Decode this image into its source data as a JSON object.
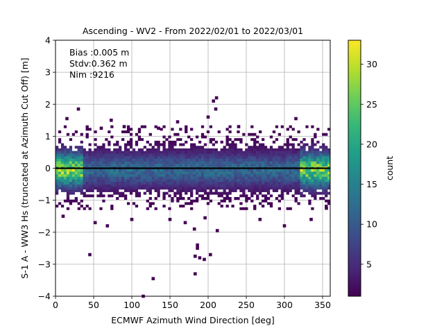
{
  "chart_data": {
    "type": "heatmap",
    "title": "Ascending - WV2 - From 2022/02/01 to 2022/03/01",
    "xlabel": "ECMWF Azimuth Wind Direction [deg]",
    "ylabel": "S-1 A - WW3 Hs (truncated at Azimuth Cut Off) [m]",
    "xlim": [
      0,
      360
    ],
    "ylim": [
      -4,
      4
    ],
    "x_ticks": [
      "0",
      "50",
      "100",
      "150",
      "200",
      "250",
      "300",
      "350"
    ],
    "y_ticks": [
      "−4",
      "−3",
      "−2",
      "−1",
      "0",
      "1",
      "2",
      "3",
      "4"
    ],
    "grid": true,
    "annotations": [
      "Bias :0.005 m",
      "Stdv:0.362 m",
      "Nim :9216"
    ],
    "colorbar": {
      "label": "count",
      "range": [
        1,
        33
      ],
      "ticks": [
        "5",
        "10",
        "15",
        "20",
        "25",
        "30"
      ],
      "colormap": "viridis"
    },
    "reference_line_y": 0,
    "reference_line_color": "#000000",
    "density_model": {
      "core_center_y": -0.05,
      "core_std_y": 0.36,
      "peak_count": 33,
      "high_density_x": [
        [
          0,
          35
        ],
        [
          320,
          360
        ]
      ],
      "outlier_points": [
        [
          10,
          -1.5
        ],
        [
          45,
          -2.7
        ],
        [
          52,
          -1.7
        ],
        [
          68,
          -1.8
        ],
        [
          128,
          -3.45
        ],
        [
          115,
          -4.0
        ],
        [
          150,
          -1.6
        ],
        [
          170,
          -1.7
        ],
        [
          182,
          -1.9
        ],
        [
          186,
          -2.4
        ],
        [
          186,
          -2.5
        ],
        [
          189,
          -2.8
        ],
        [
          183,
          -2.75
        ],
        [
          183,
          -3.3
        ],
        [
          195,
          -2.85
        ],
        [
          203,
          -2.7
        ],
        [
          212,
          -1.95
        ],
        [
          196,
          -1.55
        ],
        [
          207,
          2.1
        ],
        [
          211,
          2.2
        ],
        [
          210,
          1.85
        ],
        [
          200,
          1.6
        ],
        [
          15,
          1.55
        ],
        [
          30,
          1.85
        ],
        [
          73,
          1.5
        ],
        [
          160,
          1.45
        ],
        [
          315,
          1.55
        ],
        [
          90,
          1.3
        ],
        [
          60,
          1.25
        ],
        [
          135,
          1.25
        ],
        [
          240,
          1.3
        ],
        [
          300,
          -1.8
        ],
        [
          335,
          -1.6
        ],
        [
          355,
          -1.25
        ],
        [
          268,
          -1.6
        ],
        [
          100,
          -1.6
        ]
      ]
    }
  }
}
